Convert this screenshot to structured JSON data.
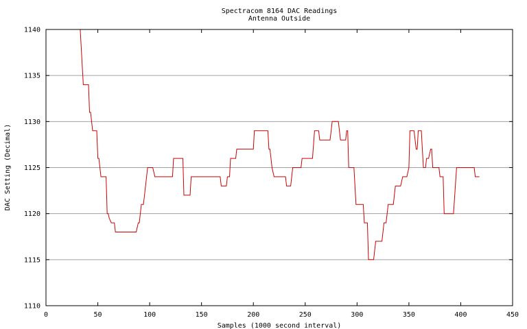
{
  "chart_data": {
    "type": "line",
    "title": "Spectracom 8164 DAC Readings",
    "subtitle": "Antenna Outside",
    "xlabel": "Samples (1000 second interval)",
    "ylabel": "DAC Setting (Decimal)",
    "xlim": [
      0,
      450
    ],
    "ylim": [
      1110,
      1140
    ],
    "xticks": [
      0,
      50,
      100,
      150,
      200,
      250,
      300,
      350,
      400,
      450
    ],
    "yticks": [
      1110,
      1115,
      1120,
      1125,
      1130,
      1135,
      1140
    ],
    "grid": "horizontal",
    "legend": "none",
    "line_color": "#cc0000",
    "series": [
      {
        "points": [
          [
            33,
            1140
          ],
          [
            35,
            1136
          ],
          [
            36,
            1134
          ],
          [
            41,
            1134
          ],
          [
            42,
            1131
          ],
          [
            43,
            1131
          ],
          [
            44,
            1130
          ],
          [
            45,
            1129
          ],
          [
            49,
            1129
          ],
          [
            50,
            1126
          ],
          [
            51,
            1126
          ],
          [
            52,
            1125
          ],
          [
            53,
            1124
          ],
          [
            58,
            1124
          ],
          [
            59,
            1120
          ],
          [
            60,
            1120
          ],
          [
            61,
            1119.5
          ],
          [
            63,
            1119
          ],
          [
            66,
            1119
          ],
          [
            67,
            1118
          ],
          [
            87,
            1118
          ],
          [
            89,
            1119
          ],
          [
            90,
            1119
          ],
          [
            91,
            1120
          ],
          [
            92,
            1121
          ],
          [
            94,
            1121
          ],
          [
            95,
            1122
          ],
          [
            96,
            1123
          ],
          [
            97,
            1124
          ],
          [
            98,
            1125
          ],
          [
            103,
            1125
          ],
          [
            104,
            1124.5
          ],
          [
            105,
            1124
          ],
          [
            122,
            1124
          ],
          [
            123,
            1126
          ],
          [
            132,
            1126
          ],
          [
            133,
            1122
          ],
          [
            139,
            1122
          ],
          [
            140,
            1124
          ],
          [
            168,
            1124
          ],
          [
            169,
            1123
          ],
          [
            174,
            1123
          ],
          [
            175,
            1124
          ],
          [
            177,
            1124
          ],
          [
            178,
            1126
          ],
          [
            183,
            1126
          ],
          [
            184,
            1127
          ],
          [
            200,
            1127
          ],
          [
            201,
            1129
          ],
          [
            214,
            1129
          ],
          [
            215,
            1127
          ],
          [
            216,
            1127
          ],
          [
            217,
            1126
          ],
          [
            218,
            1125
          ],
          [
            220,
            1124
          ],
          [
            231,
            1124
          ],
          [
            232,
            1123
          ],
          [
            236,
            1123
          ],
          [
            237,
            1124
          ],
          [
            238,
            1125
          ],
          [
            246,
            1125
          ],
          [
            247,
            1126
          ],
          [
            257,
            1126
          ],
          [
            259,
            1129
          ],
          [
            263,
            1129
          ],
          [
            264,
            1128
          ],
          [
            274,
            1128
          ],
          [
            275,
            1129
          ],
          [
            276,
            1130
          ],
          [
            282,
            1130
          ],
          [
            284,
            1128
          ],
          [
            289,
            1128
          ],
          [
            290,
            1129
          ],
          [
            291,
            1129
          ],
          [
            292,
            1125
          ],
          [
            297,
            1125
          ],
          [
            299,
            1121
          ],
          [
            306,
            1121
          ],
          [
            307,
            1119
          ],
          [
            310,
            1119
          ],
          [
            311,
            1115
          ],
          [
            316,
            1115
          ],
          [
            318,
            1117
          ],
          [
            324,
            1117
          ],
          [
            325,
            1118
          ],
          [
            326,
            1119
          ],
          [
            328,
            1119
          ],
          [
            329,
            1120
          ],
          [
            330,
            1121
          ],
          [
            335,
            1121
          ],
          [
            337,
            1123
          ],
          [
            342,
            1123
          ],
          [
            344,
            1124
          ],
          [
            348,
            1124
          ],
          [
            350,
            1125
          ],
          [
            351,
            1129
          ],
          [
            355,
            1129
          ],
          [
            357,
            1127
          ],
          [
            358,
            1127
          ],
          [
            359,
            1129
          ],
          [
            362,
            1129
          ],
          [
            364,
            1125
          ],
          [
            366,
            1125
          ],
          [
            367,
            1126
          ],
          [
            369,
            1126
          ],
          [
            371,
            1127
          ],
          [
            372,
            1127
          ],
          [
            373,
            1125
          ],
          [
            379,
            1125
          ],
          [
            380,
            1124
          ],
          [
            383,
            1124
          ],
          [
            384,
            1120
          ],
          [
            393,
            1120
          ],
          [
            396,
            1125
          ],
          [
            413,
            1125
          ],
          [
            414,
            1124
          ],
          [
            418,
            1124
          ]
        ]
      }
    ]
  }
}
